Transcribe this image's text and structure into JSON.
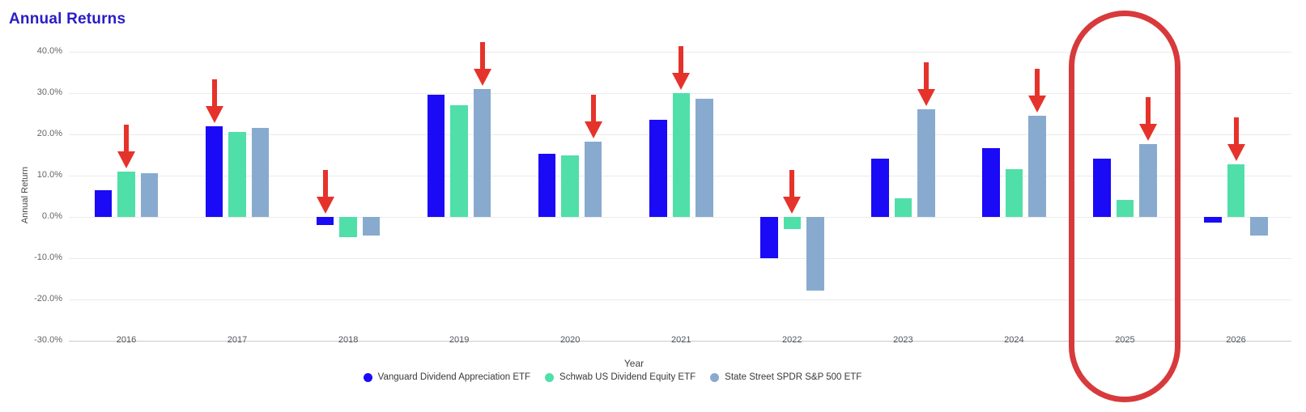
{
  "colors": {
    "title": "#2a1cc6",
    "arrow": "#e5332b",
    "highlight_ring": "#d83a3c",
    "gridline": "#ebebeb",
    "axis_baseline": "#c7cacd"
  },
  "chart_data": {
    "type": "bar",
    "title": "Annual Returns",
    "xlabel": "Year",
    "ylabel": "Annual Return",
    "ylim": [
      -30,
      40
    ],
    "grid": true,
    "legend_position": "bottom",
    "yticks": [
      40,
      30,
      20,
      10,
      0,
      -10,
      -20,
      -30
    ],
    "ytick_labels": [
      "40.0%",
      "30.0%",
      "20.0%",
      "10.0%",
      "0.0%",
      "-10.0%",
      "-20.0%",
      "-30.0%"
    ],
    "categories": [
      "2016",
      "2017",
      "2018",
      "2019",
      "2020",
      "2021",
      "2022",
      "2023",
      "2024",
      "2025",
      "2026"
    ],
    "series": [
      {
        "name": "Vanguard Dividend Appreciation ETF",
        "color": "#1a0af5",
        "values": [
          6.5,
          22.0,
          -2.0,
          29.5,
          15.2,
          23.5,
          -10.0,
          14.0,
          16.7,
          14.0,
          -1.5
        ]
      },
      {
        "name": "Schwab US Dividend Equity ETF",
        "color": "#50dfa9",
        "values": [
          11.0,
          20.5,
          -5.0,
          27.0,
          14.8,
          30.0,
          -3.0,
          4.5,
          11.5,
          4.0,
          12.6
        ]
      },
      {
        "name": "State Street SPDR S&P 500 ETF",
        "color": "#88aacf",
        "values": [
          10.5,
          21.5,
          -4.5,
          31.0,
          18.2,
          28.5,
          -18.0,
          26.0,
          24.5,
          17.6,
          -4.5
        ]
      }
    ],
    "annotations": {
      "arrows": [
        {
          "year": "2016",
          "series": "Schwab US Dividend Equity ETF"
        },
        {
          "year": "2017",
          "series": "Vanguard Dividend Appreciation ETF"
        },
        {
          "year": "2018",
          "series": "Vanguard Dividend Appreciation ETF"
        },
        {
          "year": "2019",
          "series": "State Street SPDR S&P 500 ETF"
        },
        {
          "year": "2020",
          "series": "State Street SPDR S&P 500 ETF"
        },
        {
          "year": "2021",
          "series": "Schwab US Dividend Equity ETF"
        },
        {
          "year": "2022",
          "series": "Schwab US Dividend Equity ETF"
        },
        {
          "year": "2023",
          "series": "State Street SPDR S&P 500 ETF"
        },
        {
          "year": "2024",
          "series": "State Street SPDR S&P 500 ETF"
        },
        {
          "year": "2025",
          "series": "State Street SPDR S&P 500 ETF"
        },
        {
          "year": "2026",
          "series": "Schwab US Dividend Equity ETF"
        }
      ],
      "highlighted_year": "2025"
    }
  }
}
